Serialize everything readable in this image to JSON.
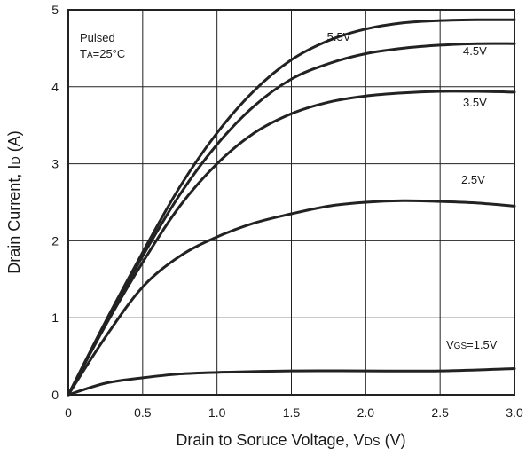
{
  "chart_data": {
    "type": "line",
    "xlabel": {
      "main": "Drain to Soruce Voltage, V",
      "sub": "DS",
      "unit": " (V)"
    },
    "ylabel": {
      "main": "Drain Current, I",
      "sub": "D",
      "unit": " (A)"
    },
    "xlim": [
      0,
      3.0
    ],
    "ylim": [
      0,
      5
    ],
    "x_ticks": [
      "0",
      "0.5",
      "1.0",
      "1.5",
      "2.0",
      "2.5",
      "3.0"
    ],
    "y_ticks": [
      "0",
      "1",
      "2",
      "3",
      "4",
      "5"
    ],
    "grid": true,
    "annotations": {
      "line1": "Pulsed",
      "line2_pre": "T",
      "line2_sub": "A",
      "line2_post": "=25°C"
    },
    "series": [
      {
        "name": "5.5V",
        "x": [
          0,
          0.25,
          0.5,
          0.75,
          1.0,
          1.25,
          1.5,
          1.75,
          2.0,
          2.25,
          2.5,
          2.75,
          3.0
        ],
        "y": [
          0,
          0.95,
          1.85,
          2.7,
          3.4,
          3.95,
          4.35,
          4.6,
          4.75,
          4.83,
          4.86,
          4.87,
          4.87
        ]
      },
      {
        "name": "4.5V",
        "x": [
          0,
          0.25,
          0.5,
          0.75,
          1.0,
          1.25,
          1.5,
          1.75,
          2.0,
          2.25,
          2.5,
          2.75,
          3.0
        ],
        "y": [
          0,
          0.92,
          1.8,
          2.6,
          3.25,
          3.75,
          4.1,
          4.3,
          4.43,
          4.5,
          4.54,
          4.56,
          4.56
        ]
      },
      {
        "name": "3.5V",
        "x": [
          0,
          0.25,
          0.5,
          0.75,
          1.0,
          1.25,
          1.5,
          1.75,
          2.0,
          2.25,
          2.5,
          2.75,
          3.0
        ],
        "y": [
          0,
          0.9,
          1.72,
          2.45,
          3.0,
          3.4,
          3.65,
          3.8,
          3.88,
          3.92,
          3.94,
          3.94,
          3.93
        ]
      },
      {
        "name": "2.5V",
        "x": [
          0,
          0.25,
          0.5,
          0.75,
          1.0,
          1.25,
          1.5,
          1.75,
          2.0,
          2.25,
          2.5,
          2.75,
          3.0
        ],
        "y": [
          0,
          0.75,
          1.4,
          1.8,
          2.05,
          2.23,
          2.35,
          2.45,
          2.5,
          2.52,
          2.51,
          2.49,
          2.45
        ]
      },
      {
        "name": "1.5V",
        "label_pre": "V",
        "label_sub": "GS",
        "label_post": "=1.5V",
        "x": [
          0,
          0.25,
          0.5,
          0.75,
          1.0,
          1.5,
          2.0,
          2.5,
          3.0
        ],
        "y": [
          0,
          0.15,
          0.22,
          0.27,
          0.29,
          0.31,
          0.31,
          0.31,
          0.34
        ]
      }
    ]
  }
}
